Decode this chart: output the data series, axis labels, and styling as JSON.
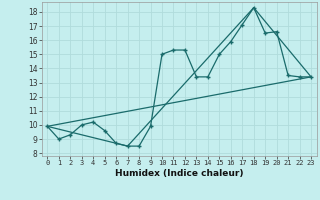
{
  "xlabel": "Humidex (Indice chaleur)",
  "background_color": "#c5eeee",
  "grid_color": "#b0dcdc",
  "line_color": "#1a6b6b",
  "xlim": [
    -0.5,
    23.5
  ],
  "ylim": [
    7.8,
    18.7
  ],
  "xticks": [
    0,
    1,
    2,
    3,
    4,
    5,
    6,
    7,
    8,
    9,
    10,
    11,
    12,
    13,
    14,
    15,
    16,
    17,
    18,
    19,
    20,
    21,
    22,
    23
  ],
  "yticks": [
    8,
    9,
    10,
    11,
    12,
    13,
    14,
    15,
    16,
    17,
    18
  ],
  "series1_x": [
    0,
    1,
    2,
    3,
    4,
    5,
    6,
    7,
    8,
    9,
    10,
    11,
    12,
    13,
    14,
    15,
    16,
    17,
    18,
    19,
    20,
    21,
    22,
    23
  ],
  "series1_y": [
    9.9,
    9.0,
    9.3,
    10.0,
    10.2,
    9.6,
    8.7,
    8.5,
    8.5,
    9.9,
    15.0,
    15.3,
    15.3,
    13.4,
    13.4,
    15.0,
    15.9,
    17.1,
    18.3,
    16.5,
    16.6,
    13.5,
    13.4,
    13.4
  ],
  "series2_x": [
    0,
    23
  ],
  "series2_y": [
    9.9,
    13.4
  ],
  "series3_x": [
    0,
    7,
    18,
    23
  ],
  "series3_y": [
    9.9,
    8.5,
    18.3,
    13.4
  ]
}
